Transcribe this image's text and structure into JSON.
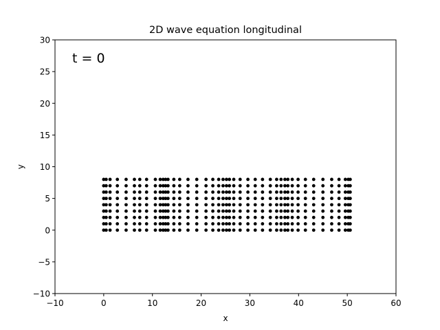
{
  "chart_data": {
    "type": "scatter",
    "title": "2D wave equation longitudinal",
    "xlabel": "x",
    "ylabel": "y",
    "xlim": [
      -10,
      60
    ],
    "ylim": [
      -10,
      30
    ],
    "xticks": [
      -10,
      0,
      10,
      20,
      30,
      40,
      50,
      60
    ],
    "yticks": [
      -10,
      -5,
      0,
      5,
      10,
      15,
      20,
      25,
      30
    ],
    "annotation": "t = 0",
    "grid": false,
    "marker_color": "#000000",
    "rows_y": [
      0,
      1,
      2,
      3,
      4,
      5,
      6,
      7,
      8
    ],
    "x_positions": [
      0.0,
      0.5,
      1.3,
      2.8,
      4.6,
      6.3,
      7.4,
      8.8,
      10.6,
      11.6,
      12.2,
      12.7,
      13.2,
      14.4,
      15.6,
      17.3,
      19.1,
      21.0,
      22.4,
      23.6,
      24.5,
      25.2,
      25.8,
      26.7,
      28.0,
      29.6,
      31.1,
      32.6,
      34.2,
      35.5,
      36.4,
      37.2,
      37.8,
      38.7,
      39.9,
      41.4,
      43.1,
      45.0,
      46.8,
      48.3,
      49.6,
      50.2,
      50.6
    ]
  }
}
